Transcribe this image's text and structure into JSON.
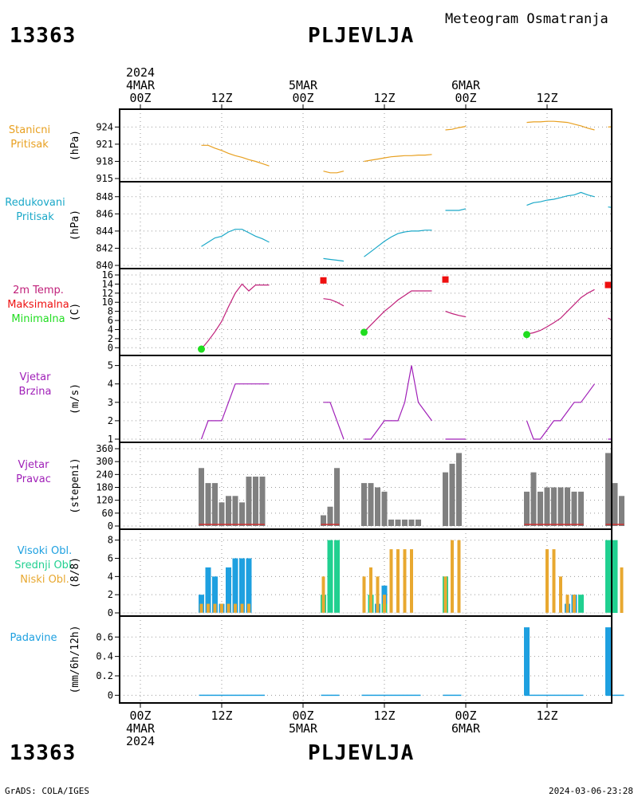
{
  "header": {
    "station_id": "13363",
    "station_name": "PLJEVLJA",
    "meteogram_title": "Meteogram Osmatranja"
  },
  "top_axis": {
    "labels": [
      {
        "lines": [
          "2024",
          "4MAR",
          "00Z"
        ]
      },
      {
        "lines": [
          "12Z"
        ]
      },
      {
        "lines": [
          "5MAR",
          "00Z"
        ]
      },
      {
        "lines": [
          "12Z"
        ]
      },
      {
        "lines": [
          "6MAR",
          "00Z"
        ]
      },
      {
        "lines": [
          "12Z"
        ]
      }
    ]
  },
  "bottom_axis": {
    "labels": [
      {
        "lines": [
          "00Z",
          "4MAR",
          "2024"
        ]
      },
      {
        "lines": [
          "12Z"
        ]
      },
      {
        "lines": [
          "00Z",
          "5MAR"
        ]
      },
      {
        "lines": [
          "12Z"
        ]
      },
      {
        "lines": [
          "00Z",
          "6MAR"
        ]
      },
      {
        "lines": [
          "12Z"
        ]
      }
    ]
  },
  "footer": {
    "source": "GrADS: COLA/IGES",
    "timestamp": "2024-03-06-23:28"
  },
  "colors": {
    "station_pressure": "#e8a020",
    "reduced_pressure": "#1aa8c8",
    "temp_2m": "#c0207a",
    "max_marker": "#ee1010",
    "min_marker": "#20dd20",
    "wind": "#a020b8",
    "bar_gray": "#808080",
    "high_cloud": "#1ea0e0",
    "mid_cloud": "#20d090",
    "low_cloud": "#e8a830",
    "precip": "#1ea0e0"
  },
  "panel_labels": {
    "p1": [
      "Stanicni",
      "Pritisak"
    ],
    "p1_color": "#e8a020",
    "p2": [
      "Redukovani",
      "Pritisak"
    ],
    "p2_color": "#1aa8c8",
    "p3": [
      {
        "text": "2m Temp.",
        "color": "#c0207a"
      },
      {
        "text": "Maksimalna",
        "color": "#ee1010"
      },
      {
        "text": "Minimalna",
        "color": "#20dd20"
      }
    ],
    "p4": [
      "Vjetar",
      "Brzina"
    ],
    "p4_color": "#a020b8",
    "p5": [
      "Vjetar",
      "Pravac"
    ],
    "p5_color": "#a020b8",
    "p6": [
      {
        "text": "Visoki Obl.",
        "color": "#1ea0e0"
      },
      {
        "text": "Srednji Obl.",
        "color": "#20d090"
      },
      {
        "text": "Niski Obl.",
        "color": "#e8a830"
      }
    ],
    "p7": [
      "Padavine"
    ],
    "p7_color": "#1ea0e0"
  },
  "chart_data": [
    {
      "type": "line",
      "ylabel": "(hPa)",
      "x_unit": "hours since 4MAR 00Z",
      "ylim": [
        915,
        926
      ],
      "yticks": [
        "915",
        "918",
        "921",
        "924"
      ],
      "segments": [
        {
          "x": [
            9,
            10,
            11,
            12,
            13,
            14,
            15,
            16,
            17,
            18,
            19
          ],
          "y": [
            920.8,
            920.8,
            920.3,
            919.9,
            919.4,
            919.0,
            918.7,
            918.3,
            918.0,
            917.6,
            917.2
          ]
        },
        {
          "x": [
            27,
            28,
            29,
            30
          ],
          "y": [
            916.3,
            916.0,
            916.0,
            916.3
          ]
        },
        {
          "x": [
            33,
            34,
            35,
            36,
            37,
            38,
            39,
            40,
            41,
            42,
            43
          ],
          "y": [
            918.0,
            918.2,
            918.4,
            918.6,
            918.8,
            918.9,
            919.0,
            919.0,
            919.1,
            919.1,
            919.2
          ]
        },
        {
          "x": [
            45,
            46,
            47,
            48
          ],
          "y": [
            923.5,
            923.6,
            923.9,
            924.1
          ]
        },
        {
          "x": [
            57,
            58,
            59,
            60,
            61,
            62,
            63,
            64,
            65,
            66,
            67
          ],
          "y": [
            924.8,
            924.9,
            924.9,
            925.0,
            925.0,
            924.9,
            924.8,
            924.5,
            924.2,
            923.8,
            923.5
          ]
        },
        {
          "x": [
            69,
            70,
            71
          ],
          "y": [
            924.0,
            924.1,
            923.8
          ]
        }
      ]
    },
    {
      "type": "line",
      "ylabel": "(hPa)",
      "x_unit": "hours since 4MAR 00Z",
      "ylim": [
        840,
        849
      ],
      "yticks": [
        "840",
        "842",
        "844",
        "846",
        "848"
      ],
      "segments": [
        {
          "x": [
            9,
            10,
            11,
            12,
            13,
            14,
            15,
            16,
            17,
            18,
            19
          ],
          "y": [
            842.2,
            842.7,
            843.2,
            843.4,
            843.9,
            844.2,
            844.2,
            843.8,
            843.4,
            843.1,
            842.7
          ]
        },
        {
          "x": [
            27,
            28,
            29,
            30
          ],
          "y": [
            840.8,
            840.7,
            840.6,
            840.5
          ]
        },
        {
          "x": [
            33,
            34,
            35,
            36,
            37,
            38,
            39,
            40,
            41,
            42,
            43
          ],
          "y": [
            841.0,
            841.6,
            842.2,
            842.8,
            843.3,
            843.7,
            843.9,
            844.0,
            844.0,
            844.1,
            844.1
          ]
        },
        {
          "x": [
            45,
            46,
            47,
            48
          ],
          "y": [
            846.4,
            846.4,
            846.4,
            846.6
          ]
        },
        {
          "x": [
            57,
            58,
            59,
            60,
            61,
            62,
            63,
            64,
            65,
            66,
            67
          ],
          "y": [
            847.0,
            847.3,
            847.4,
            847.6,
            847.7,
            847.9,
            848.1,
            848.2,
            848.5,
            848.2,
            848.0
          ]
        },
        {
          "x": [
            69,
            70,
            71
          ],
          "y": [
            846.8,
            846.7,
            846.2
          ]
        }
      ]
    },
    {
      "type": "line",
      "ylabel": "(C)",
      "x_unit": "hours since 4MAR 00Z",
      "ylim": [
        -1,
        16
      ],
      "yticks": [
        "0",
        "2",
        "4",
        "6",
        "8",
        "10",
        "12",
        "14",
        "16"
      ],
      "segments": [
        {
          "x": [
            9,
            10,
            11,
            12,
            13,
            14,
            15,
            16,
            17,
            18,
            19
          ],
          "y": [
            -0.3,
            1.5,
            3.5,
            5.8,
            9.0,
            12.0,
            14.0,
            12.5,
            13.8,
            13.8,
            13.8
          ]
        },
        {
          "x": [
            27,
            28,
            29,
            30
          ],
          "y": [
            10.8,
            10.6,
            10.0,
            9.2
          ]
        },
        {
          "x": [
            33,
            34,
            35,
            36,
            37,
            38,
            39,
            40,
            41,
            42,
            43
          ],
          "y": [
            3.5,
            5.0,
            6.5,
            8.0,
            9.2,
            10.5,
            11.5,
            12.5,
            12.5,
            12.5,
            12.5
          ]
        },
        {
          "x": [
            45,
            46,
            47,
            48
          ],
          "y": [
            8.0,
            7.5,
            7.1,
            6.8
          ]
        },
        {
          "x": [
            57,
            58,
            59,
            60,
            61,
            62,
            63,
            64,
            65,
            66,
            67
          ],
          "y": [
            3.0,
            3.3,
            3.8,
            4.6,
            5.5,
            6.5,
            8.0,
            9.5,
            11.0,
            12.0,
            12.8
          ]
        },
        {
          "x": [
            69,
            70,
            71
          ],
          "y": [
            6.5,
            5.8,
            5.2
          ]
        }
      ],
      "max_points": [
        {
          "x": 27,
          "y": 14.8
        },
        {
          "x": 45,
          "y": 15.0
        },
        {
          "x": 69,
          "y": 13.8
        }
      ],
      "min_points": [
        {
          "x": 9,
          "y": -0.3
        },
        {
          "x": 33,
          "y": 3.4
        },
        {
          "x": 57,
          "y": 2.9
        }
      ]
    },
    {
      "type": "line",
      "ylabel": "(m/s)",
      "x_unit": "hours since 4MAR 00Z",
      "ylim": [
        1,
        5.2
      ],
      "yticks": [
        "1",
        "2",
        "3",
        "4",
        "5"
      ],
      "segments": [
        {
          "x": [
            9,
            10,
            11,
            12,
            13,
            14,
            15,
            16,
            17,
            18,
            19
          ],
          "y": [
            1,
            2,
            2,
            2,
            3,
            4,
            4,
            4,
            4,
            4,
            4
          ]
        },
        {
          "x": [
            27,
            28,
            29,
            30
          ],
          "y": [
            3,
            3,
            2,
            1
          ]
        },
        {
          "x": [
            33,
            34,
            35,
            36,
            37,
            38,
            39,
            40,
            41,
            42,
            43
          ],
          "y": [
            1,
            1,
            1.5,
            2,
            2,
            2,
            3,
            5,
            3,
            2.5,
            2
          ]
        },
        {
          "x": [
            45,
            46,
            47,
            48
          ],
          "y": [
            1,
            1,
            1,
            1
          ]
        },
        {
          "x": [
            57,
            58,
            59,
            60,
            61,
            62,
            63,
            64,
            65,
            66,
            67
          ],
          "y": [
            2,
            1,
            1,
            1.5,
            2,
            2,
            2.5,
            3,
            3,
            3.5,
            4
          ]
        },
        {
          "x": [
            69,
            70,
            71
          ],
          "y": [
            1,
            1,
            1
          ]
        }
      ]
    },
    {
      "type": "bar",
      "ylabel": "(stepeni)",
      "x_unit": "hours since 4MAR 00Z",
      "ylim": [
        0,
        360
      ],
      "yticks": [
        "0",
        "60",
        "120",
        "180",
        "240",
        "300",
        "360"
      ],
      "x": [
        9,
        10,
        11,
        12,
        13,
        14,
        15,
        16,
        17,
        18,
        27,
        28,
        29,
        33,
        34,
        35,
        36,
        37,
        38,
        39,
        40,
        41,
        45,
        46,
        47,
        57,
        58,
        59,
        60,
        61,
        62,
        63,
        64,
        65,
        69,
        70,
        71
      ],
      "values": [
        270,
        200,
        200,
        110,
        140,
        140,
        110,
        230,
        230,
        230,
        50,
        90,
        270,
        200,
        200,
        180,
        160,
        30,
        30,
        30,
        30,
        30,
        250,
        290,
        340,
        160,
        250,
        160,
        180,
        180,
        180,
        180,
        160,
        160,
        340,
        200,
        140
      ]
    },
    {
      "type": "bar",
      "ylabel": "(8/8)",
      "x_unit": "hours since 4MAR 00Z",
      "ylim": [
        0,
        8.5
      ],
      "yticks": [
        "0",
        "2",
        "4",
        "6",
        "8"
      ],
      "x": [
        9,
        10,
        11,
        12,
        13,
        14,
        15,
        16,
        17,
        18,
        27,
        28,
        29,
        33,
        34,
        35,
        36,
        37,
        38,
        39,
        40,
        41,
        45,
        46,
        47,
        57,
        58,
        59,
        60,
        61,
        62,
        63,
        64,
        65,
        69,
        70,
        71
      ],
      "series": [
        {
          "name": "Visoki Obl.",
          "values": [
            2,
            5,
            4,
            1,
            5,
            6,
            6,
            6,
            0,
            0,
            0,
            0,
            0,
            0,
            0,
            1,
            3,
            0,
            0,
            0,
            0,
            0,
            0,
            0,
            0,
            0,
            0,
            0,
            0,
            0,
            0,
            1,
            2,
            0,
            0,
            0,
            0
          ]
        },
        {
          "name": "Srednji Obl.",
          "values": [
            0,
            0,
            0,
            0,
            0,
            0,
            0,
            0,
            0,
            0,
            2,
            8,
            8,
            0,
            2,
            0,
            1,
            0,
            0,
            0,
            0,
            0,
            4,
            0,
            0,
            0,
            0,
            0,
            0,
            0,
            0,
            0,
            0,
            2,
            8,
            8,
            0
          ]
        },
        {
          "name": "Niski Obl.",
          "values": [
            1,
            1,
            1,
            1,
            1,
            1,
            1,
            1,
            0,
            0,
            4,
            0,
            0,
            4,
            5,
            4,
            2,
            7,
            7,
            7,
            7,
            0,
            4,
            8,
            8,
            0,
            0,
            0,
            7,
            7,
            4,
            2,
            2,
            0,
            0,
            0,
            5
          ]
        }
      ]
    },
    {
      "type": "bar",
      "ylabel": "(mm/6h/12h)",
      "x_unit": "hours since 4MAR 00Z",
      "ylim": [
        -0.03,
        0.75
      ],
      "yticks": [
        "0",
        "0.2",
        "0.4",
        "0.6"
      ],
      "x": [
        57,
        69
      ],
      "values": [
        0.7,
        0.7
      ]
    }
  ]
}
